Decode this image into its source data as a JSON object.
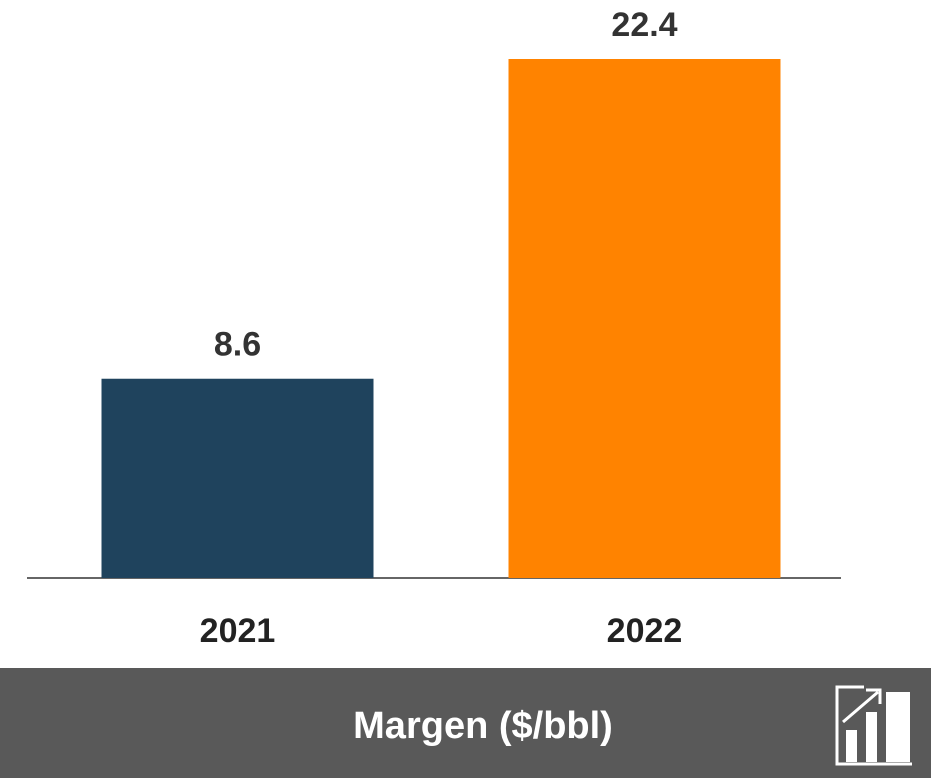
{
  "chart_data": {
    "type": "bar",
    "title": "Margen ($/bbl)",
    "categories": [
      "2021",
      "2022"
    ],
    "values": [
      8.6,
      22.4
    ],
    "colors": [
      "#1f435d",
      "#ff8300"
    ]
  }
}
